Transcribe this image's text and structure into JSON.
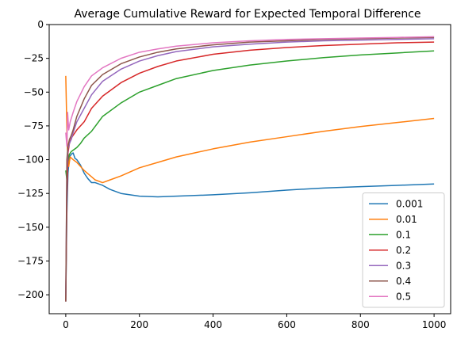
{
  "chart_data": {
    "type": "line",
    "title": "Average Cumulative Reward for Expected Temporal Difference",
    "xlabel": "",
    "ylabel": "",
    "xlim": [
      -45,
      1045
    ],
    "ylim": [
      -214,
      0
    ],
    "x_ticks": [
      0,
      200,
      400,
      600,
      800,
      1000
    ],
    "y_ticks": [
      0,
      -25,
      -50,
      -75,
      -100,
      -125,
      -150,
      -175,
      -200
    ],
    "grid": false,
    "legend_position": "bottom-right",
    "series": [
      {
        "name": "0.001",
        "color": "#1f77b4",
        "points": [
          [
            0,
            -205
          ],
          [
            3,
            -140
          ],
          [
            6,
            -110
          ],
          [
            10,
            -98
          ],
          [
            15,
            -96
          ],
          [
            20,
            -95
          ],
          [
            25,
            -99
          ],
          [
            30,
            -100
          ],
          [
            40,
            -104
          ],
          [
            50,
            -110
          ],
          [
            60,
            -114
          ],
          [
            70,
            -117
          ],
          [
            80,
            -117
          ],
          [
            100,
            -119
          ],
          [
            120,
            -122
          ],
          [
            150,
            -125
          ],
          [
            200,
            -127
          ],
          [
            250,
            -127.5
          ],
          [
            300,
            -127
          ],
          [
            350,
            -126.5
          ],
          [
            400,
            -126
          ],
          [
            500,
            -124.5
          ],
          [
            600,
            -122.5
          ],
          [
            700,
            -121
          ],
          [
            800,
            -120
          ],
          [
            900,
            -119
          ],
          [
            1000,
            -118
          ]
        ]
      },
      {
        "name": "0.01",
        "color": "#ff7f0e",
        "points": [
          [
            0,
            -38
          ],
          [
            4,
            -90
          ],
          [
            8,
            -105
          ],
          [
            12,
            -98
          ],
          [
            20,
            -100
          ],
          [
            30,
            -102
          ],
          [
            50,
            -108
          ],
          [
            80,
            -115
          ],
          [
            100,
            -117
          ],
          [
            120,
            -115
          ],
          [
            150,
            -112
          ],
          [
            200,
            -106
          ],
          [
            250,
            -102
          ],
          [
            300,
            -98
          ],
          [
            350,
            -95
          ],
          [
            400,
            -92
          ],
          [
            500,
            -87
          ],
          [
            600,
            -83
          ],
          [
            700,
            -79
          ],
          [
            800,
            -75.5
          ],
          [
            900,
            -72.5
          ],
          [
            1000,
            -69.5
          ]
        ]
      },
      {
        "name": "0.1",
        "color": "#2ca02c",
        "points": [
          [
            0,
            -108
          ],
          [
            3,
            -115
          ],
          [
            6,
            -100
          ],
          [
            10,
            -96
          ],
          [
            15,
            -94
          ],
          [
            20,
            -93
          ],
          [
            30,
            -91
          ],
          [
            40,
            -88
          ],
          [
            50,
            -84
          ],
          [
            70,
            -79
          ],
          [
            100,
            -68
          ],
          [
            150,
            -58
          ],
          [
            200,
            -50
          ],
          [
            250,
            -45
          ],
          [
            300,
            -40
          ],
          [
            400,
            -34
          ],
          [
            500,
            -30
          ],
          [
            600,
            -27
          ],
          [
            700,
            -24.5
          ],
          [
            800,
            -22.5
          ],
          [
            900,
            -21
          ],
          [
            1000,
            -19.5
          ]
        ]
      },
      {
        "name": "0.2",
        "color": "#d62728",
        "points": [
          [
            0,
            -205
          ],
          [
            3,
            -130
          ],
          [
            6,
            -95
          ],
          [
            10,
            -88
          ],
          [
            15,
            -84
          ],
          [
            20,
            -82
          ],
          [
            30,
            -78
          ],
          [
            50,
            -72
          ],
          [
            70,
            -62
          ],
          [
            100,
            -53
          ],
          [
            150,
            -43
          ],
          [
            200,
            -36
          ],
          [
            250,
            -31
          ],
          [
            300,
            -27
          ],
          [
            400,
            -22
          ],
          [
            500,
            -19
          ],
          [
            600,
            -17
          ],
          [
            700,
            -15.5
          ],
          [
            800,
            -14.5
          ],
          [
            900,
            -13.5
          ],
          [
            1000,
            -13
          ]
        ]
      },
      {
        "name": "0.3",
        "color": "#9467bd",
        "points": [
          [
            0,
            -200
          ],
          [
            3,
            -110
          ],
          [
            6,
            -92
          ],
          [
            10,
            -88
          ],
          [
            15,
            -85
          ],
          [
            20,
            -80
          ],
          [
            30,
            -72
          ],
          [
            50,
            -62
          ],
          [
            70,
            -52
          ],
          [
            100,
            -42
          ],
          [
            150,
            -33
          ],
          [
            200,
            -27
          ],
          [
            250,
            -23
          ],
          [
            300,
            -20
          ],
          [
            400,
            -16.5
          ],
          [
            500,
            -14.5
          ],
          [
            600,
            -13
          ],
          [
            700,
            -12
          ],
          [
            800,
            -11.5
          ],
          [
            900,
            -11
          ],
          [
            1000,
            -10.5
          ]
        ]
      },
      {
        "name": "0.4",
        "color": "#8c564b",
        "points": [
          [
            0,
            -205
          ],
          [
            3,
            -100
          ],
          [
            6,
            -90
          ],
          [
            10,
            -85
          ],
          [
            15,
            -82
          ],
          [
            20,
            -78
          ],
          [
            30,
            -68
          ],
          [
            50,
            -55
          ],
          [
            70,
            -45
          ],
          [
            100,
            -37
          ],
          [
            150,
            -29
          ],
          [
            200,
            -24
          ],
          [
            250,
            -20.5
          ],
          [
            300,
            -18
          ],
          [
            400,
            -15
          ],
          [
            500,
            -13
          ],
          [
            600,
            -12
          ],
          [
            700,
            -11
          ],
          [
            800,
            -10.5
          ],
          [
            900,
            -10
          ],
          [
            1000,
            -9.5
          ]
        ]
      },
      {
        "name": "0.5",
        "color": "#e377c2",
        "points": [
          [
            0,
            -80
          ],
          [
            3,
            -90
          ],
          [
            5,
            -65
          ],
          [
            8,
            -78
          ],
          [
            12,
            -72
          ],
          [
            20,
            -65
          ],
          [
            30,
            -57
          ],
          [
            50,
            -46
          ],
          [
            70,
            -38
          ],
          [
            100,
            -32
          ],
          [
            150,
            -25
          ],
          [
            200,
            -20.5
          ],
          [
            250,
            -18
          ],
          [
            300,
            -16
          ],
          [
            400,
            -13.5
          ],
          [
            500,
            -12
          ],
          [
            600,
            -11
          ],
          [
            700,
            -10.5
          ],
          [
            800,
            -10
          ],
          [
            900,
            -9.5
          ],
          [
            1000,
            -9
          ]
        ]
      }
    ]
  }
}
